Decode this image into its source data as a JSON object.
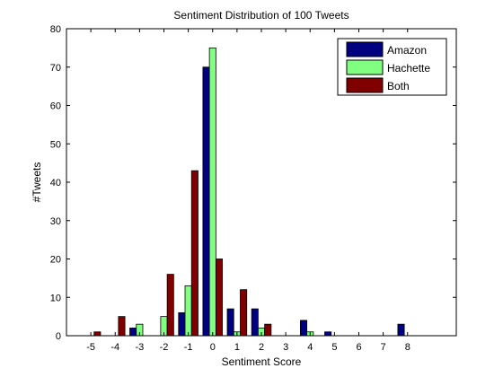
{
  "chart_data": {
    "type": "bar",
    "title": "Sentiment Distribution of 100 Tweets",
    "xlabel": "Sentiment Score",
    "ylabel": "#Tweets",
    "x": [
      -5,
      -4,
      -3,
      -2,
      -1,
      0,
      1,
      2,
      3,
      4,
      5,
      6,
      7,
      8
    ],
    "xtick_labels": [
      "-5",
      "-4",
      "-3",
      "-2",
      "-1",
      "0",
      "1",
      "2",
      "3",
      "4",
      "5",
      "6",
      "7",
      "8"
    ],
    "xlim": [
      -6,
      10
    ],
    "ylim": [
      0,
      80
    ],
    "yticks": [
      0,
      10,
      20,
      30,
      40,
      50,
      60,
      70,
      80
    ],
    "grid": false,
    "legend_position": "top-right",
    "series": [
      {
        "name": "Amazon",
        "color": "#000080",
        "values": [
          0,
          0,
          2,
          0,
          6,
          70,
          7,
          7,
          0,
          4,
          1,
          0,
          0,
          3
        ]
      },
      {
        "name": "Hachette",
        "color": "#80ff80",
        "values": [
          0,
          0,
          3,
          5,
          13,
          75,
          1,
          2,
          0,
          1,
          0,
          0,
          0,
          0
        ]
      },
      {
        "name": "Both",
        "color": "#800000",
        "values": [
          1,
          5,
          0,
          16,
          43,
          20,
          12,
          3,
          0,
          0,
          0,
          0,
          0,
          0
        ]
      }
    ]
  }
}
